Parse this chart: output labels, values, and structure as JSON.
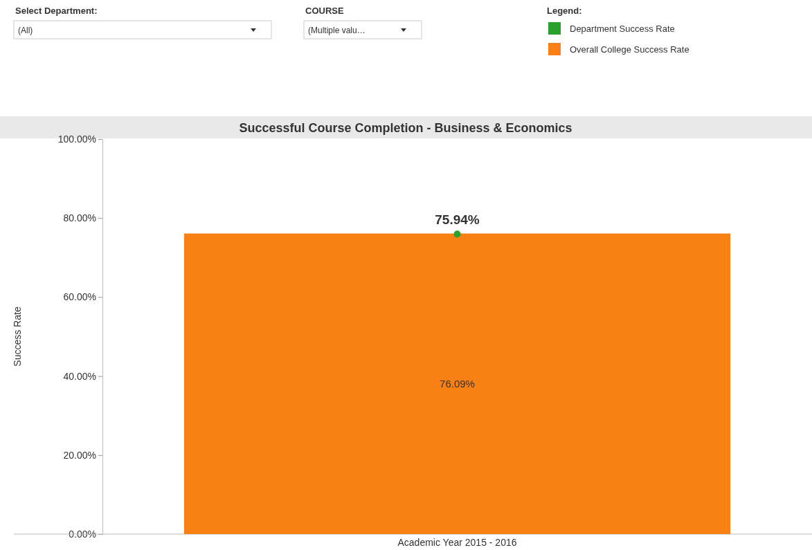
{
  "chart_data": {
    "type": "bar",
    "title": "Successful Course Completion - Business & Economics",
    "ylabel": "Success Rate",
    "legend_title": "Legend:",
    "legend": "top right",
    "grid": false,
    "marker": "circle",
    "annotations": [
      "Select Department:",
      "(All)",
      "COURSE",
      "(Multiple valu…"
    ],
    "categories": [
      "Academic Year 2015 - 2016"
    ],
    "ylim": [
      0,
      100
    ],
    "yticks": [
      {
        "value": 0,
        "label": "0.00%"
      },
      {
        "value": 20,
        "label": "20.00%"
      },
      {
        "value": 40,
        "label": "40.00%"
      },
      {
        "value": 60,
        "label": "60.00%"
      },
      {
        "value": 80,
        "label": "80.00%"
      },
      {
        "value": 100,
        "label": "100.00%"
      }
    ],
    "series": [
      {
        "name": "Department Success Rate",
        "type": "scatter",
        "color": "#2ca02c",
        "values": [
          75.94
        ],
        "value_labels": [
          "75.94%"
        ]
      },
      {
        "name": "Overall College Success Rate",
        "color": "#f98015",
        "values": [
          76.09
        ],
        "value_labels": [
          "76.09%"
        ]
      }
    ]
  }
}
